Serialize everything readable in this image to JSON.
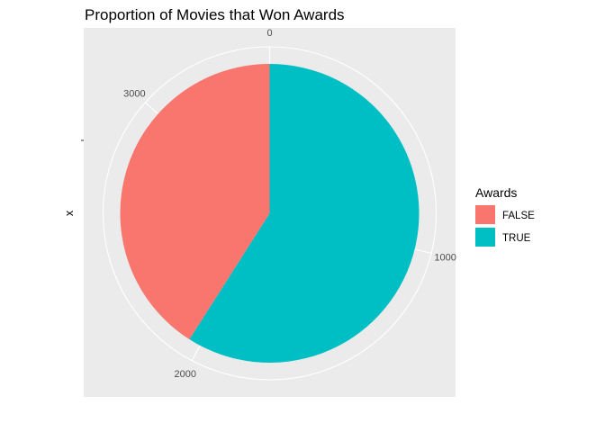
{
  "chart_data": {
    "type": "pie",
    "title": "Proportion of  Movies that Won Awards",
    "xlabel": "",
    "ylabel": "x",
    "legend_title": "Awards",
    "legend_position": "right",
    "categories": [
      "FALSE",
      "TRUE"
    ],
    "values": [
      1420,
      2045
    ],
    "colors": [
      "#F8766D",
      "#00BFC4"
    ],
    "theta_ticks": [
      0,
      1000,
      2000,
      3000
    ],
    "theta_tick_labels": [
      "0",
      "1000",
      "2000",
      "3000"
    ],
    "total": 3465,
    "stack_order": [
      "TRUE",
      "FALSE"
    ],
    "panel_background": "#EBEBEB",
    "grid_color": "#FFFFFF",
    "grid": true
  }
}
